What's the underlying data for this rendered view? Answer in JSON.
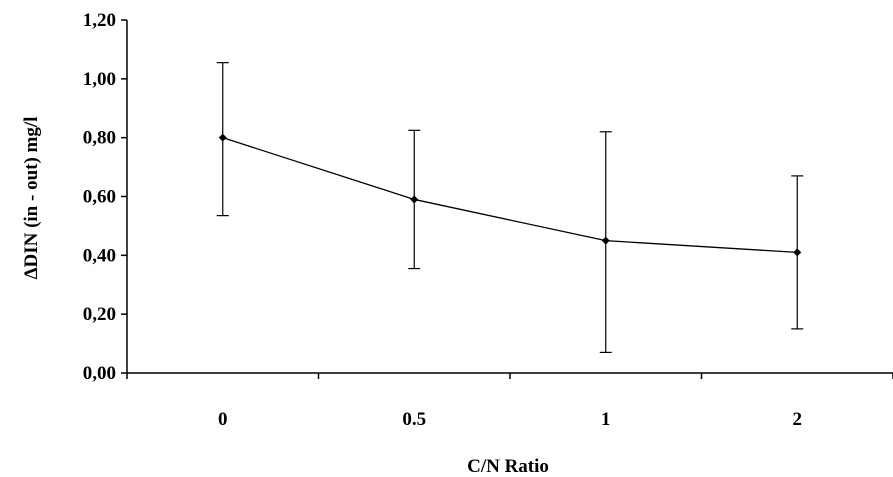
{
  "chart_data": {
    "type": "line",
    "categories": [
      "0",
      "0.5",
      "1",
      "2"
    ],
    "series": [
      {
        "values": [
          0.8,
          0.59,
          0.45,
          0.41
        ],
        "error_low": [
          0.535,
          0.355,
          0.07,
          0.15
        ],
        "error_high": [
          1.055,
          0.825,
          0.82,
          0.67
        ]
      }
    ],
    "xlabel": "C/N Ratio",
    "ylabel": "ΔDIN (in - out) mg/l",
    "ylim": [
      0,
      1.2
    ],
    "yticks": [
      "0,00",
      "0,20",
      "0,40",
      "0,60",
      "0,80",
      "1,00",
      "1,20"
    ],
    "ytick_values": [
      0,
      0.2,
      0.4,
      0.6,
      0.8,
      1.0,
      1.2
    ],
    "grid": false,
    "line_color": "#000000"
  }
}
